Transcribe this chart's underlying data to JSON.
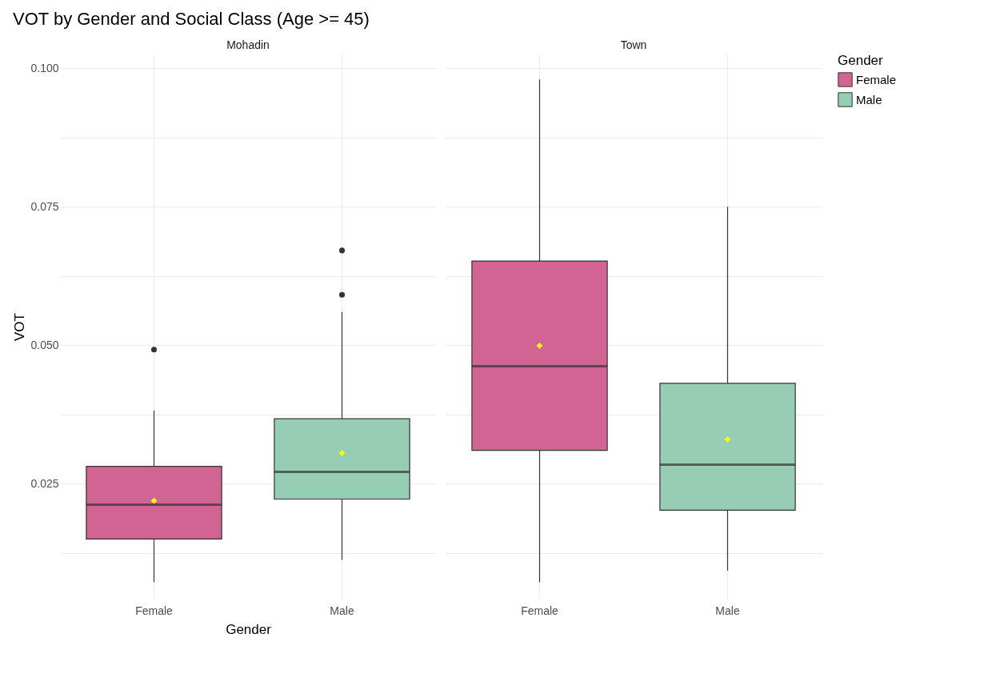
{
  "chart_data": [
    {
      "type": "box",
      "title": "VOT by Gender and Social Class (Age >= 45)",
      "subtitle": "Mohadin",
      "xlabel": "Gender",
      "ylabel": "VOT",
      "categories": [
        "Female",
        "Male"
      ],
      "series": [
        {
          "color": "#d16493",
          "boxes": [
            {
              "low": 0.0072,
              "q1": 0.015,
              "median": 0.0212,
              "q3": 0.0281,
              "high": 0.0382,
              "mean": 0.0219,
              "outliers": [
                0.0492
              ]
            },
            null
          ]
        },
        {
          "color": "#96cdb4",
          "boxes": [
            null,
            {
              "low": 0.0112,
              "q1": 0.0222,
              "median": 0.0271,
              "q3": 0.0367,
              "high": 0.056,
              "mean": 0.0305,
              "outliers": [
                0.0591,
                0.0671
              ]
            }
          ]
        }
      ],
      "ylim": [
        0.0042,
        0.1025
      ],
      "yticks": [
        {
          "value": 0.0125,
          "label": null
        },
        {
          "value": 0.025,
          "label": "0.025"
        },
        {
          "value": 0.0375,
          "label": null
        },
        {
          "value": 0.05,
          "label": "0.050"
        },
        {
          "value": 0.0625,
          "label": null
        },
        {
          "value": 0.075,
          "label": "0.075"
        },
        {
          "value": 0.0875,
          "label": null
        },
        {
          "value": 0.1,
          "label": "0.100"
        }
      ],
      "grid": true
    },
    {
      "type": "box",
      "subtitle": "Town",
      "categories": [
        "Female",
        "Male"
      ],
      "legend": "right",
      "legend_title": "Gender",
      "series": [
        {
          "name": "Female",
          "color": "#d16493",
          "boxes": [
            {
              "low": 0.0072,
              "q1": 0.031,
              "median": 0.0462,
              "q3": 0.0652,
              "high": 0.098,
              "mean": 0.0499
            },
            null
          ]
        },
        {
          "name": "Male",
          "color": "#96cdb4",
          "boxes": [
            null,
            {
              "low": 0.0093,
              "q1": 0.0202,
              "median": 0.0284,
              "q3": 0.0431,
              "high": 0.075,
              "mean": 0.033
            }
          ]
        }
      ],
      "ylim": [
        0.0042,
        0.1025
      ],
      "yticks": [
        0.0125,
        0.025,
        0.0375,
        0.05,
        0.0625,
        0.075,
        0.0875,
        0.1
      ],
      "grid": true,
      "tick_labels": "x"
    }
  ]
}
